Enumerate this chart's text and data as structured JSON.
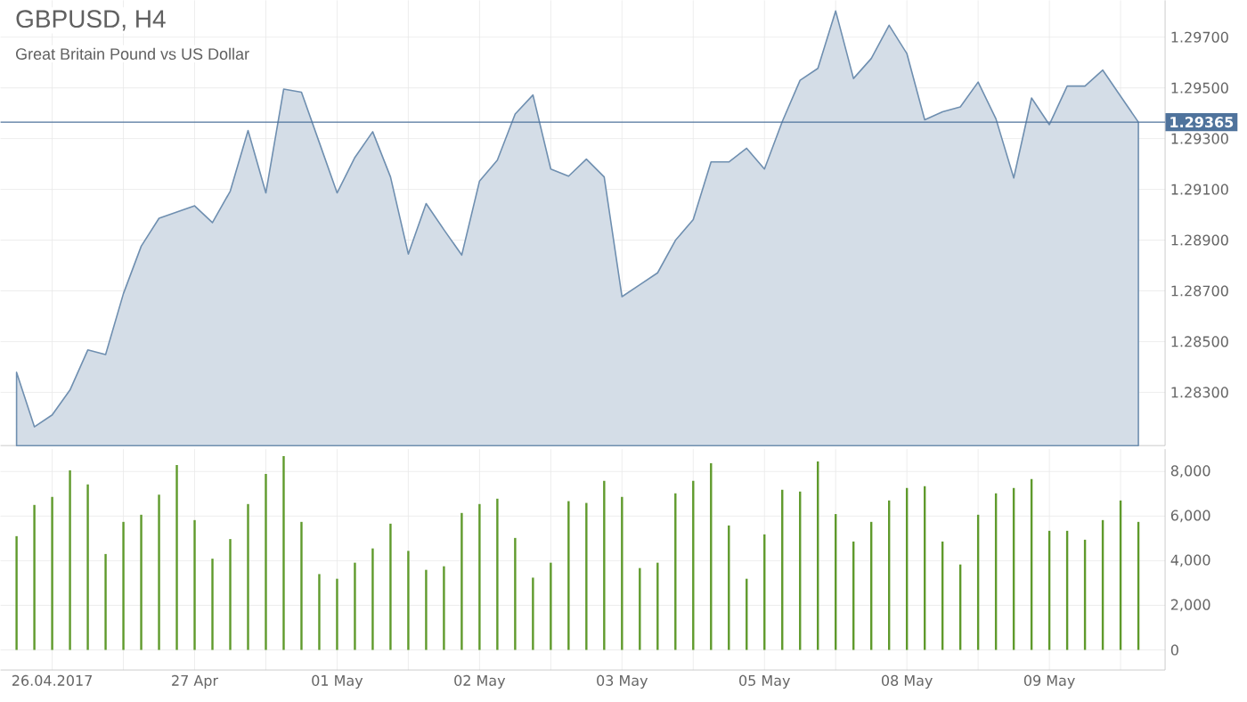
{
  "chart_data": [
    {
      "type": "area",
      "title": "GBPUSD, H4",
      "subtitle": "Great Britain Pound vs US Dollar",
      "color": "#6f8fb0",
      "categories": [
        null,
        null,
        null,
        null,
        null,
        null,
        null,
        null,
        null,
        null,
        null,
        null,
        null,
        null,
        null,
        null,
        null,
        null,
        null,
        null,
        null,
        null,
        null,
        null,
        null,
        null,
        null,
        null,
        null,
        null,
        null,
        null,
        null,
        null,
        null,
        null,
        null,
        null,
        null,
        null,
        null,
        null,
        null,
        null,
        null,
        null,
        null,
        null,
        null,
        null,
        null,
        null,
        null,
        null,
        null,
        null,
        null,
        null,
        null,
        null,
        null,
        null,
        null,
        null
      ],
      "values": [
        1.28379,
        1.28164,
        1.28211,
        1.28309,
        1.28467,
        1.28449,
        1.28689,
        1.28876,
        1.28986,
        1.29011,
        1.29035,
        1.28969,
        1.29093,
        1.29332,
        1.29086,
        1.29495,
        1.29483,
        1.29285,
        1.29086,
        1.29226,
        1.29327,
        1.29149,
        1.28845,
        1.29044,
        1.28941,
        1.28841,
        1.29133,
        1.29215,
        1.29397,
        1.29472,
        1.2918,
        1.29152,
        1.29219,
        1.29149,
        1.28677,
        1.28724,
        1.28771,
        1.28899,
        1.28981,
        1.29208,
        1.29208,
        1.29262,
        1.2918,
        1.29367,
        1.2953,
        1.29577,
        1.29803,
        1.29537,
        1.29616,
        1.29747,
        1.29635,
        1.29374,
        1.29406,
        1.29425,
        1.29523,
        1.29378,
        1.29145,
        1.2946,
        1.29355,
        1.29507,
        1.29507,
        1.2957,
        1.29467,
        1.29365
      ],
      "ylim": [
        1.2809,
        1.29845
      ],
      "yticks": [
        {
          "value": 1.283,
          "label": "1.28300"
        },
        {
          "value": 1.285,
          "label": "1.28500"
        },
        {
          "value": 1.287,
          "label": "1.28700"
        },
        {
          "value": 1.289,
          "label": "1.28900"
        },
        {
          "value": 1.291,
          "label": "1.29100"
        },
        {
          "value": 1.293,
          "label": "1.29300"
        },
        {
          "value": 1.295,
          "label": "1.29500"
        },
        {
          "value": 1.297,
          "label": "1.29700"
        }
      ],
      "ref_lines": [
        {
          "axis": "y",
          "value": 1.29365,
          "label": "1.29365",
          "color": "#4f739c"
        }
      ],
      "grid": true,
      "tick_labels": "y"
    },
    {
      "type": "bar",
      "color": "#5f9a2c",
      "categories": [
        null,
        null,
        "26.04.2017",
        null,
        null,
        null,
        null,
        null,
        null,
        null,
        "27 Apr",
        null,
        null,
        null,
        null,
        null,
        null,
        null,
        "01 May",
        null,
        null,
        null,
        null,
        null,
        null,
        null,
        "02 May",
        null,
        null,
        null,
        null,
        null,
        null,
        null,
        "03 May",
        null,
        null,
        null,
        null,
        null,
        null,
        null,
        "05 May",
        null,
        null,
        null,
        null,
        null,
        null,
        null,
        "08 May",
        null,
        null,
        null,
        null,
        null,
        null,
        null,
        "09 May",
        null,
        null,
        null,
        null,
        null
      ],
      "values": [
        5100,
        6500,
        6860,
        8050,
        7420,
        4300,
        5740,
        6060,
        6960,
        8290,
        5820,
        4090,
        4970,
        6540,
        7890,
        8690,
        5740,
        3400,
        3190,
        3910,
        4550,
        5660,
        4440,
        3590,
        3750,
        6140,
        6540,
        6780,
        5020,
        3240,
        3910,
        6670,
        6590,
        7580,
        6860,
        3670,
        3910,
        7020,
        7580,
        8370,
        5580,
        3190,
        5180,
        7180,
        7100,
        8450,
        6090,
        4860,
        5740,
        6700,
        7260,
        7340,
        4860,
        3830,
        6060,
        7020,
        7260,
        7660,
        5340,
        5340,
        4940,
        5820,
        6700,
        5740
      ],
      "ylim": [
        -900,
        9000
      ],
      "yticks": [
        0,
        {
          "value": 2000,
          "label": "2,000"
        },
        {
          "value": 4000,
          "label": "4,000"
        },
        {
          "value": 6000,
          "label": "6,000"
        },
        {
          "value": 8000,
          "label": "8,000"
        }
      ],
      "grid": true
    }
  ]
}
